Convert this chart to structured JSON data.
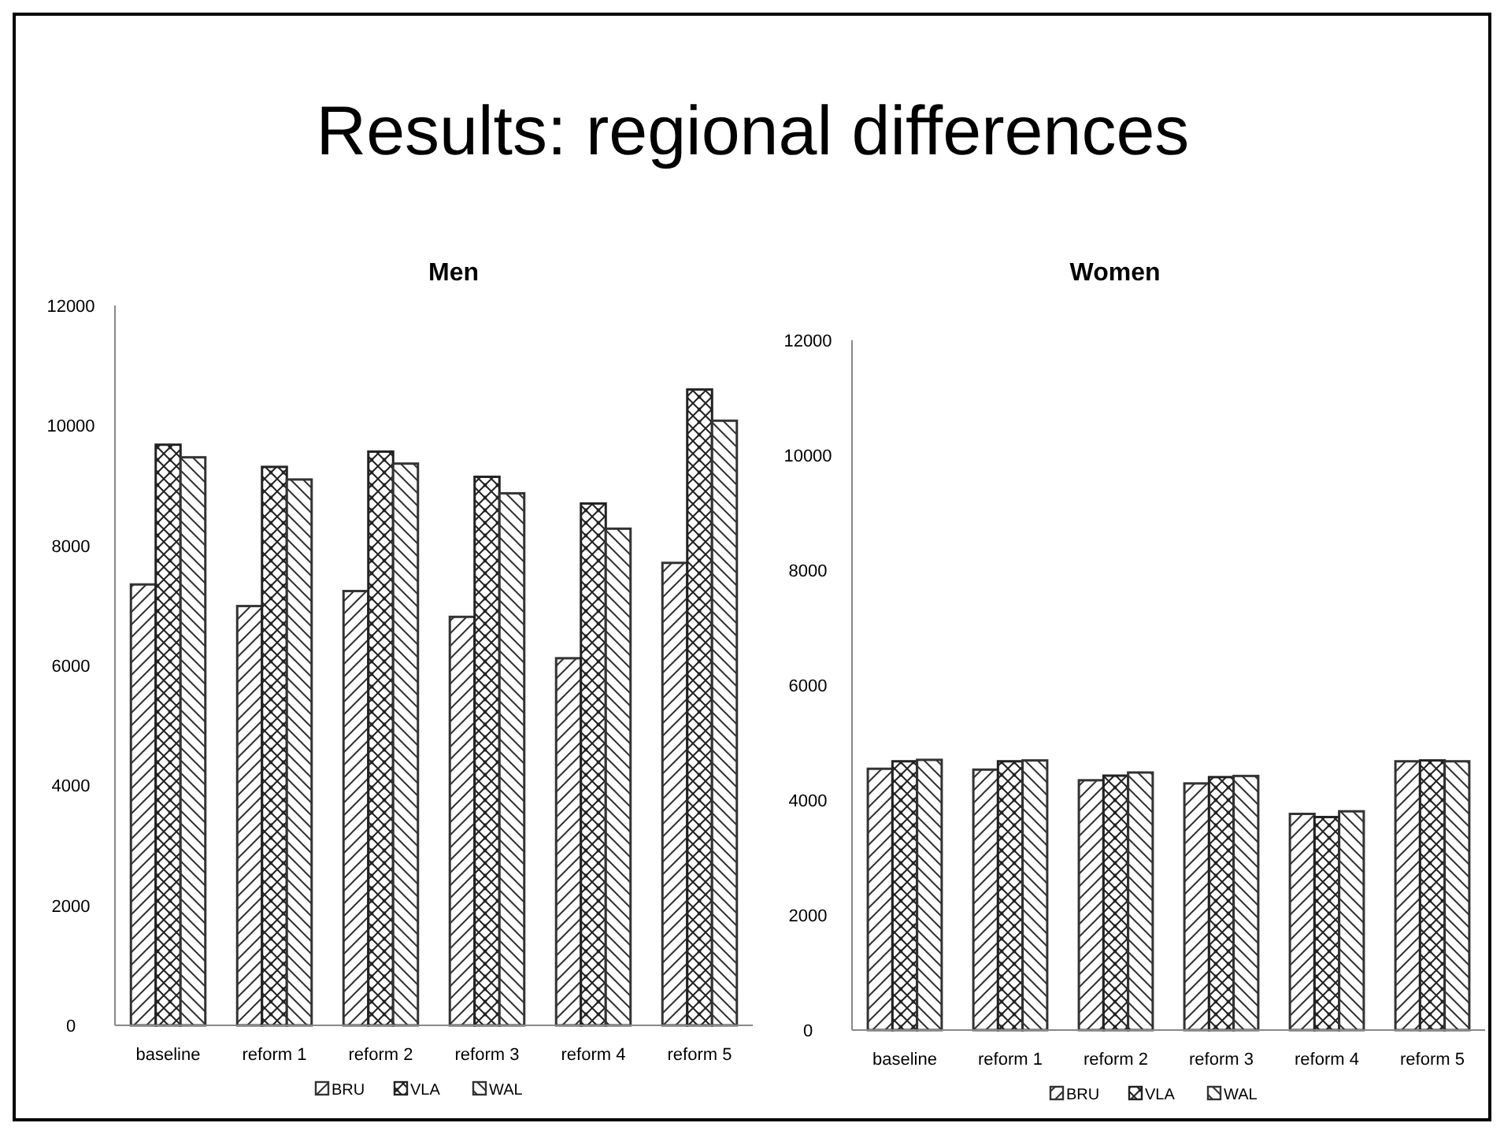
{
  "chart_data": [
    {
      "type": "bar",
      "title": "Men",
      "annotations": [
        "Results: regional differences"
      ],
      "categories": [
        "baseline",
        "reform 1",
        "reform 2",
        "reform 3",
        "reform 4",
        "reform 5"
      ],
      "series": [
        {
          "name": "BRU",
          "color": "#333333",
          "values": [
            7350,
            6990,
            7240,
            6810,
            6120,
            7710
          ]
        },
        {
          "name": "VLA",
          "color": "#222222",
          "values": [
            9680,
            9310,
            9565,
            9145,
            8700,
            10600
          ]
        },
        {
          "name": "WAL",
          "color": "#333333",
          "values": [
            9470,
            9100,
            9365,
            8870,
            8280,
            10080
          ]
        }
      ],
      "ylim": [
        0,
        12000
      ],
      "yticks": [
        0,
        2000,
        4000,
        6000,
        8000,
        10000,
        12000
      ],
      "grid": false,
      "legend": "bottom"
    },
    {
      "type": "bar",
      "title": "Women",
      "categories": [
        "baseline",
        "reform 1",
        "reform 2",
        "reform 3",
        "reform 4",
        "reform 5"
      ],
      "series": [
        {
          "name": "BRU",
          "color": "#333333",
          "values": [
            4545,
            4530,
            4345,
            4290,
            3760,
            4675
          ]
        },
        {
          "name": "VLA",
          "color": "#222222",
          "values": [
            4675,
            4675,
            4425,
            4400,
            3705,
            4690
          ]
        },
        {
          "name": "WAL",
          "color": "#333333",
          "values": [
            4700,
            4690,
            4480,
            4420,
            3805,
            4675
          ]
        }
      ],
      "ylim": [
        0,
        12000
      ],
      "yticks": [
        0,
        2000,
        4000,
        6000,
        8000,
        10000,
        12000
      ],
      "grid": false,
      "legend": "bottom"
    }
  ]
}
